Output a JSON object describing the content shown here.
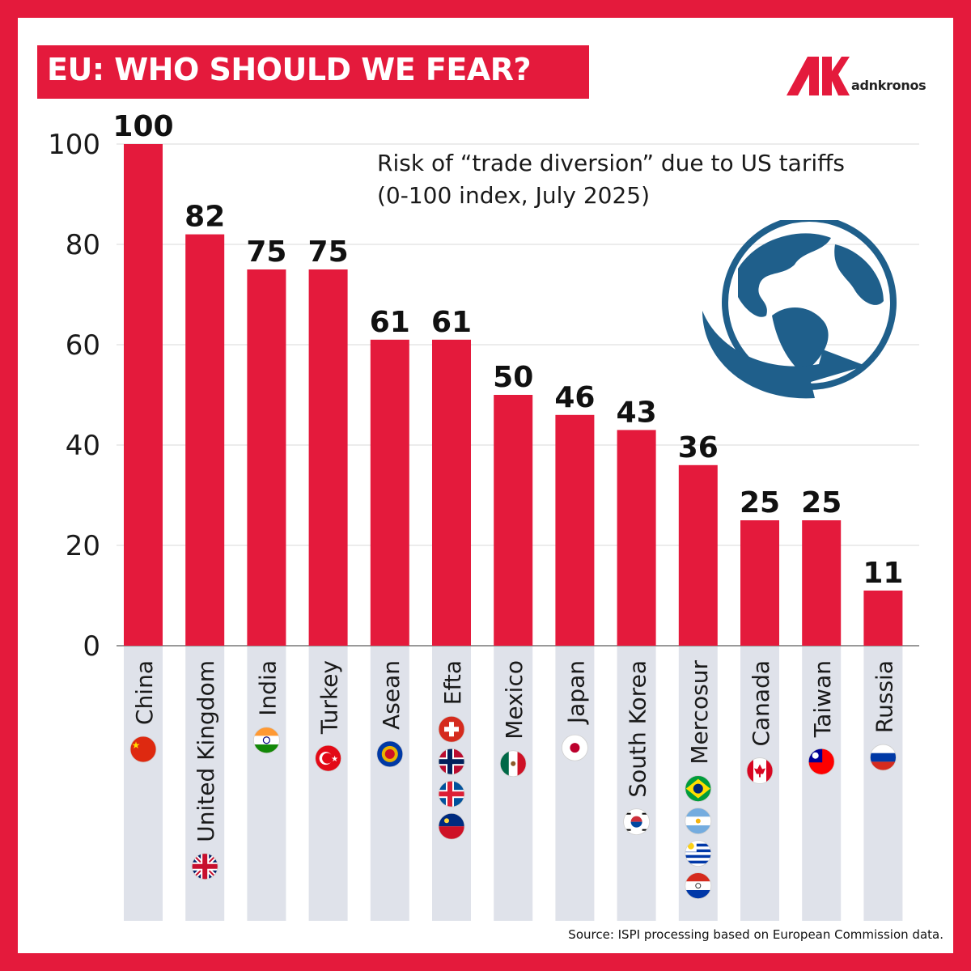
{
  "header": {
    "title": "EU: WHO SHOULD WE FEAR?",
    "logo_text": "adnkronos",
    "logo_icon": "adnkronos-logo-icon"
  },
  "chart_data": {
    "type": "bar",
    "title": "Risk of “trade diversion” due to US tariffs",
    "subtitle": "(0-100 index, July 2025)",
    "categories": [
      "China",
      "United Kingdom",
      "India",
      "Turkey",
      "Asean",
      "Efta",
      "Mexico",
      "Japan",
      "South Korea",
      "Mercosur",
      "Canada",
      "Taiwan",
      "Russia"
    ],
    "values": [
      100,
      82,
      75,
      75,
      61,
      61,
      50,
      46,
      43,
      36,
      25,
      25,
      11
    ],
    "ylim": [
      0,
      100
    ],
    "yticks": [
      0,
      20,
      40,
      60,
      80,
      100
    ],
    "grid": true,
    "xlabel": "",
    "ylabel": "",
    "colors": {
      "bar": "#e41a3c",
      "label_band": "#dfe2ea",
      "grid": "#d9d9d9",
      "value_label": "#111111"
    },
    "flags": [
      [
        "china-flag-icon"
      ],
      [
        "united-kingdom-flag-icon"
      ],
      [
        "india-flag-icon"
      ],
      [
        "turkey-flag-icon"
      ],
      [
        "asean-flag-icon"
      ],
      [
        "switzerland-flag-icon",
        "norway-flag-icon",
        "iceland-flag-icon",
        "liechtenstein-flag-icon"
      ],
      [
        "mexico-flag-icon"
      ],
      [
        "japan-flag-icon"
      ],
      [
        "south-korea-flag-icon"
      ],
      [
        "brazil-flag-icon",
        "argentina-flag-icon",
        "uruguay-flag-icon",
        "paraguay-flag-icon"
      ],
      [
        "canada-flag-icon"
      ],
      [
        "taiwan-flag-icon"
      ],
      [
        "russia-flag-icon"
      ]
    ]
  },
  "decoration": {
    "globe_icon": "globe-arrow-icon",
    "globe_color": "#1f5f8b"
  },
  "footer": {
    "source": "Source: ISPI processing based on European Commission data."
  }
}
